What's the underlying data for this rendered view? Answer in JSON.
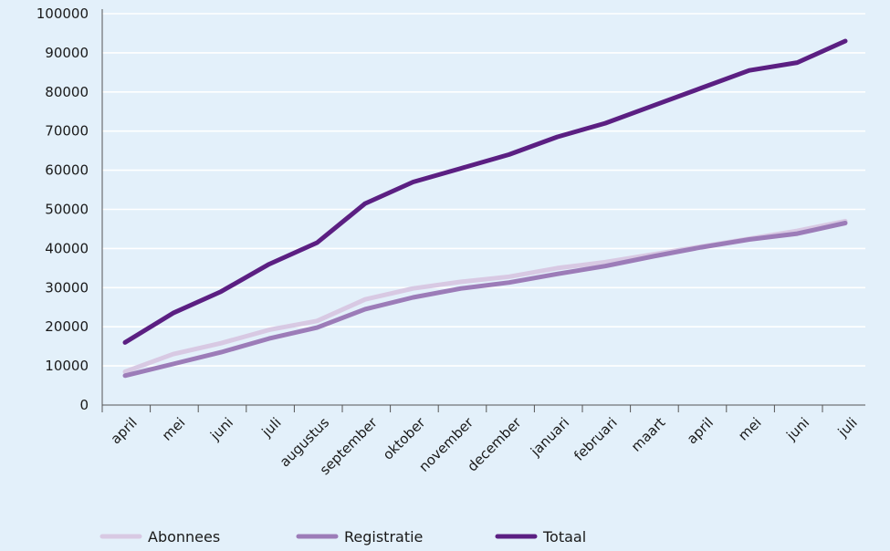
{
  "chart_data": {
    "type": "line",
    "title": "",
    "xlabel": "",
    "ylabel": "",
    "categories": [
      "april",
      "mei",
      "juni",
      "juli",
      "augustus",
      "september",
      "oktober",
      "november",
      "december",
      "januari",
      "februari",
      "maart",
      "april",
      "mei",
      "juni",
      "juli"
    ],
    "ylim": [
      0,
      100000
    ],
    "yticks": [
      "0",
      "10000",
      "20000",
      "30000",
      "40000",
      "50000",
      "60000",
      "70000",
      "80000",
      "90000",
      "100000"
    ],
    "grid": "horizontal",
    "legend_position": "bottom",
    "series": [
      {
        "name": "Abonnees",
        "color": "#d8c9e3",
        "values": [
          8500,
          13000,
          15800,
          19200,
          21500,
          27000,
          29800,
          31500,
          32800,
          35000,
          36500,
          38500,
          40500,
          42500,
          44500,
          47000
        ]
      },
      {
        "name": "Registratie",
        "color": "#9c7cb8",
        "values": [
          7500,
          10500,
          13500,
          17000,
          19800,
          24500,
          27500,
          29800,
          31300,
          33500,
          35500,
          38000,
          40300,
          42300,
          43800,
          46500
        ]
      },
      {
        "name": "Totaal",
        "color": "#5b1f82",
        "values": [
          16000,
          23500,
          29000,
          36000,
          41500,
          51500,
          57000,
          60500,
          64000,
          68500,
          72000,
          76500,
          81000,
          85500,
          87500,
          93000
        ]
      }
    ]
  }
}
